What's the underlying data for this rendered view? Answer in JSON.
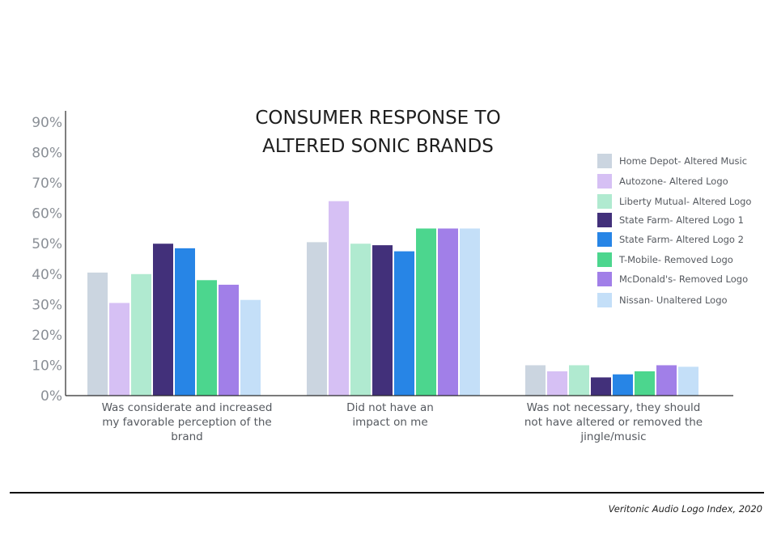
{
  "chart_data": {
    "type": "bar",
    "title": [
      "CONSUMER RESPONSE TO",
      "ALTERED SONIC BRANDS"
    ],
    "categories": [
      [
        "Was considerate and increased",
        "my favorable perception of the",
        "brand"
      ],
      [
        "Did not have an",
        "impact on me"
      ],
      [
        "Was not necessary, they should",
        "not have altered or removed the",
        "jingle/music"
      ]
    ],
    "yticks": [
      "0%",
      "10%",
      "20%",
      "30%",
      "40%",
      "50%",
      "60%",
      "70%",
      "80%",
      "90%"
    ],
    "ylim": [
      0,
      90
    ],
    "series": [
      {
        "name": "Home Depot- Altered Music",
        "color": "#cbd5e0",
        "values": [
          40.5,
          50.5,
          10
        ]
      },
      {
        "name": "Autozone- Altered Logo",
        "color": "#d6c0f4",
        "values": [
          30.5,
          64,
          8
        ]
      },
      {
        "name": "Liberty Mutual- Altered Logo",
        "color": "#b0ead0",
        "values": [
          40,
          50,
          10
        ]
      },
      {
        "name": "State Farm- Altered Logo 1",
        "color": "#42307a",
        "values": [
          50,
          49.5,
          6
        ]
      },
      {
        "name": "State Farm- Altered Logo 2",
        "color": "#2785e6",
        "values": [
          48.5,
          47.5,
          7
        ]
      },
      {
        "name": "T-Mobile- Removed Logo",
        "color": "#4cd68e",
        "values": [
          38,
          55,
          8
        ]
      },
      {
        "name": "McDonald's- Removed Logo",
        "color": "#a17fe8",
        "values": [
          36.5,
          55,
          10
        ]
      },
      {
        "name": "Nissan- Unaltered Logo",
        "color": "#c4dff8",
        "values": [
          31.5,
          55,
          9.5
        ]
      }
    ],
    "legend_position": "right",
    "grid": false
  },
  "source": "Veritonic Audio Logo Index, 2020"
}
